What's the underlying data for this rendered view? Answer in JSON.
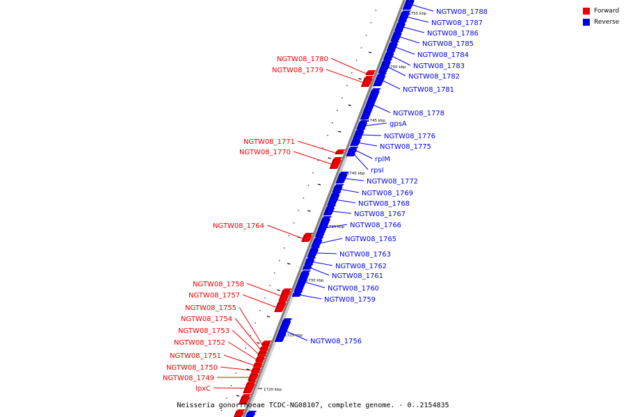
{
  "legend": {
    "forward_label": "Forward",
    "reverse_label": "Reverse",
    "forward_color": "#ee0000",
    "reverse_color": "#0000ee"
  },
  "caption": "Neisseria gonorrhoeae TCDC-NG08107, complete genome. - 0..2154835",
  "scale_labels": [
    "1755 kbp",
    "1750 kbp",
    "1745 kbp",
    "1740 kbp",
    "1735 kbp",
    "1730 kbp",
    "1725 kbp",
    "1720 kbp"
  ],
  "genes_forward": [
    "NGTW08_1780",
    "NGTW08_1779",
    "NGTW08_1771",
    "NGTW08_1770",
    "NGTW08_1764",
    "NGTW08_1758",
    "NGTW08_1757",
    "NGTW08_1755",
    "NGTW08_1754",
    "NGTW08_1753",
    "NGTW08_1752",
    "NGTW08_1751",
    "NGTW08_1750",
    "NGTW08_1749",
    "lpxC"
  ],
  "genes_reverse": [
    "NGTW08_1788",
    "NGTW08_1787",
    "NGTW08_1786",
    "NGTW08_1785",
    "NGTW08_1784",
    "NGTW08_1783",
    "NGTW08_1782",
    "NGTW08_1781",
    "NGTW08_1778",
    "gpsA",
    "NGTW08_1776",
    "NGTW08_1775",
    "rplM",
    "rpsI",
    "NGTW08_1772",
    "NGTW08_1769",
    "NGTW08_1768",
    "NGTW08_1767",
    "NGTW08_1766",
    "NGTW08_1765",
    "NGTW08_1763",
    "NGTW08_1762",
    "NGTW08_1761",
    "NGTW08_1760",
    "NGTW08_1759",
    "NGTW08_1756"
  ]
}
